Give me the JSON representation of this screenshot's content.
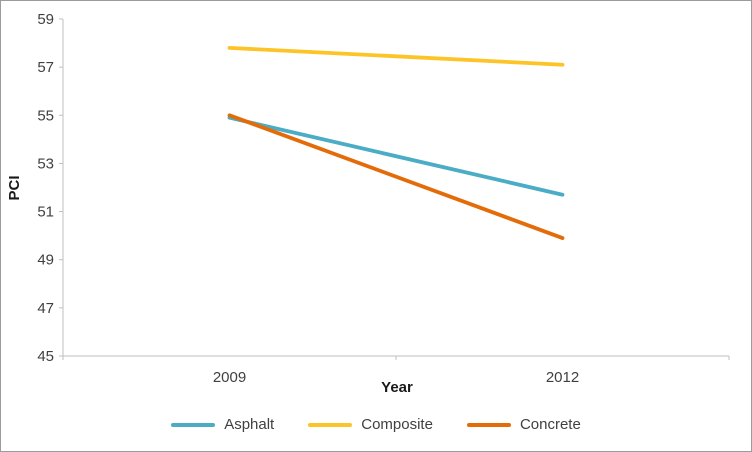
{
  "chart_data": {
    "type": "line",
    "title": "",
    "xlabel": "Year",
    "ylabel": "PCI",
    "categories": [
      "2009",
      "2012"
    ],
    "series": [
      {
        "name": "Asphalt",
        "color": "#4BACC6",
        "values": [
          54.9,
          51.7
        ]
      },
      {
        "name": "Composite",
        "color": "#FDC428",
        "values": [
          57.8,
          57.1
        ]
      },
      {
        "name": "Concrete",
        "color": "#E36C09",
        "values": [
          55.0,
          49.9
        ]
      }
    ],
    "ylim": [
      45,
      59
    ],
    "yticks": [
      45,
      47,
      49,
      51,
      53,
      55,
      57,
      59
    ],
    "grid": false,
    "legend_position": "bottom",
    "axis_color": "#BFBFBF",
    "tick_label_color": "#404040"
  }
}
